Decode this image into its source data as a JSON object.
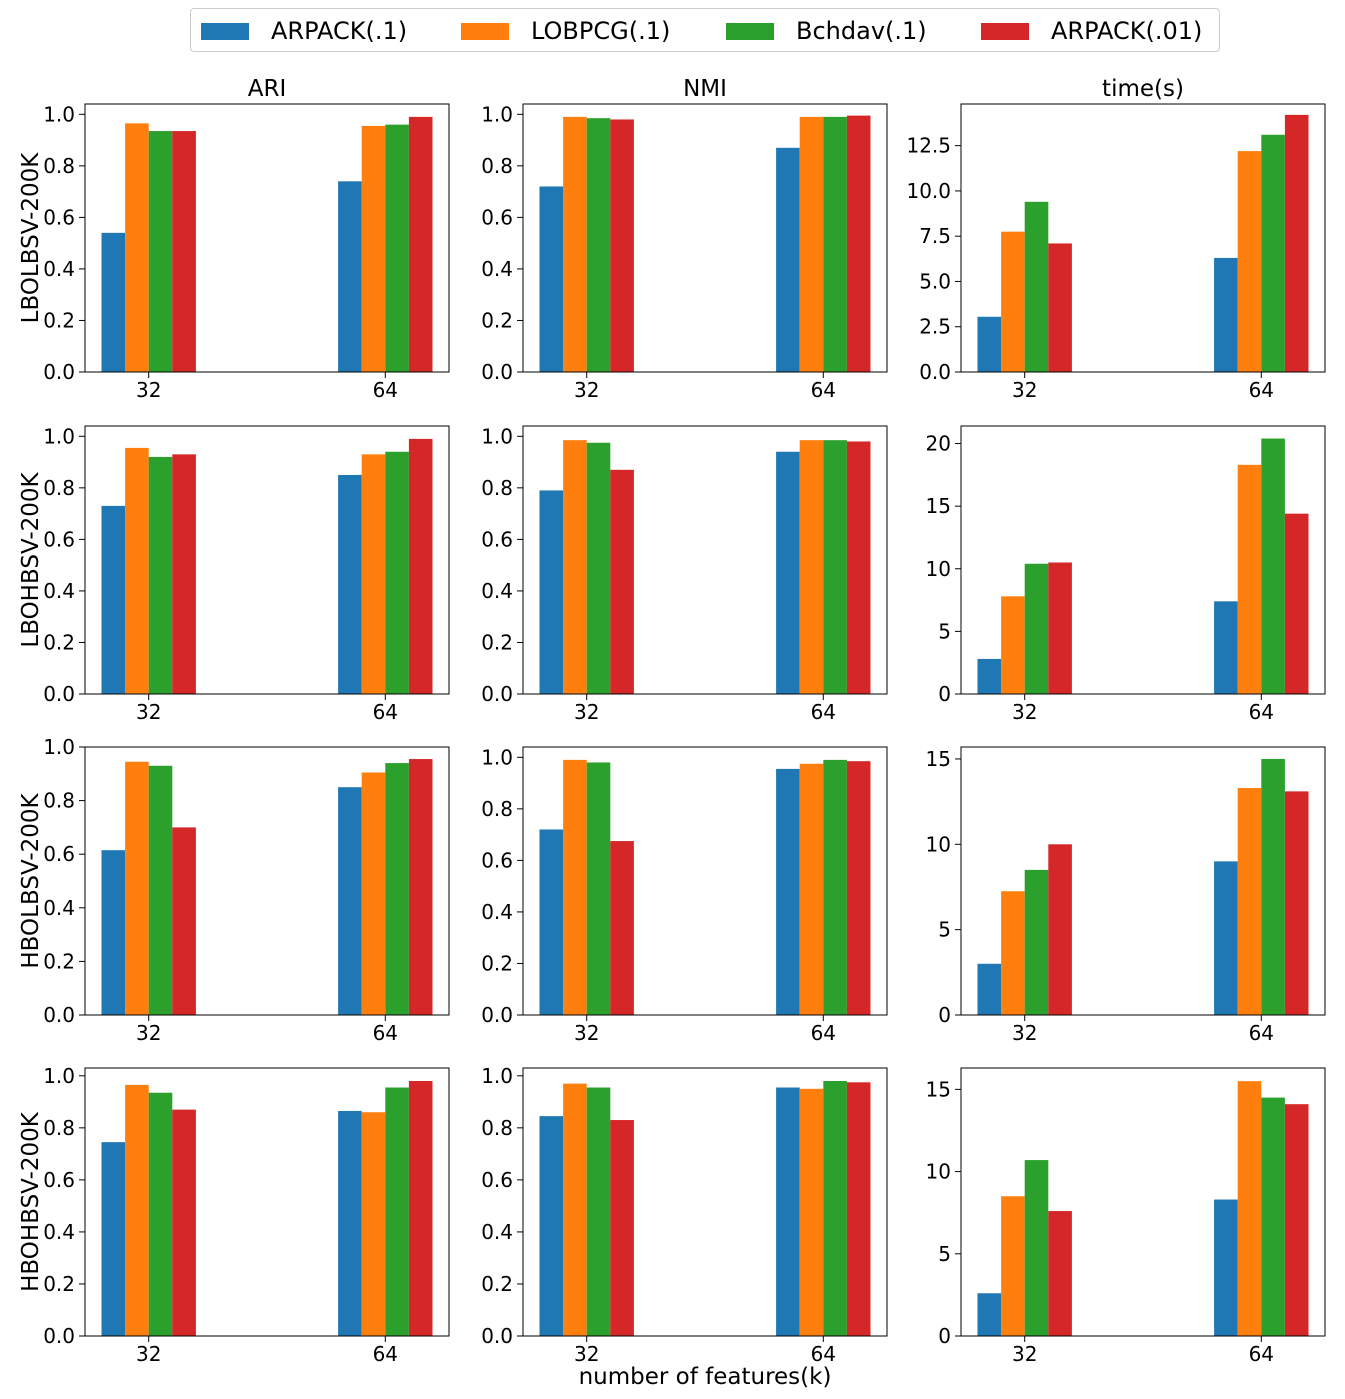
{
  "legend": {
    "items": [
      {
        "label": "ARPACK(.1)",
        "color": "#1f77b4"
      },
      {
        "label": "LOBPCG(.1)",
        "color": "#ff7f0e"
      },
      {
        "label": "Bchdav(.1)",
        "color": "#2ca02c"
      },
      {
        "label": "ARPACK(.01)",
        "color": "#d62728"
      }
    ]
  },
  "figure": {
    "column_titles": [
      "ARI",
      "NMI",
      "time(s)"
    ],
    "row_labels": [
      "LBOLBSV-200K",
      "LBOHBSV-200K",
      "HBOLBSV-200K",
      "HBOHBSV-200K"
    ],
    "xlabel": "number of features(k)"
  },
  "chart_data": [
    {
      "type": "bar",
      "row": "LBOLBSV-200K",
      "title": "ARI",
      "categories": [
        "32",
        "64"
      ],
      "ylim": [
        0,
        1.04
      ],
      "yticks": [
        "0.0",
        "0.2",
        "0.4",
        "0.6",
        "0.8",
        "1.0"
      ],
      "ytick_values": [
        0,
        0.2,
        0.4,
        0.6,
        0.8,
        1.0
      ],
      "series": [
        {
          "name": "ARPACK(.1)",
          "values": [
            0.54,
            0.74
          ]
        },
        {
          "name": "LOBPCG(.1)",
          "values": [
            0.965,
            0.955
          ]
        },
        {
          "name": "Bchdav(.1)",
          "values": [
            0.935,
            0.96
          ]
        },
        {
          "name": "ARPACK(.01)",
          "values": [
            0.935,
            0.99
          ]
        }
      ]
    },
    {
      "type": "bar",
      "row": "LBOLBSV-200K",
      "title": "NMI",
      "categories": [
        "32",
        "64"
      ],
      "ylim": [
        0,
        1.04
      ],
      "yticks": [
        "0.0",
        "0.2",
        "0.4",
        "0.6",
        "0.8",
        "1.0"
      ],
      "ytick_values": [
        0,
        0.2,
        0.4,
        0.6,
        0.8,
        1.0
      ],
      "series": [
        {
          "name": "ARPACK(.1)",
          "values": [
            0.72,
            0.87
          ]
        },
        {
          "name": "LOBPCG(.1)",
          "values": [
            0.99,
            0.99
          ]
        },
        {
          "name": "Bchdav(.1)",
          "values": [
            0.985,
            0.99
          ]
        },
        {
          "name": "ARPACK(.01)",
          "values": [
            0.98,
            0.995
          ]
        }
      ]
    },
    {
      "type": "bar",
      "row": "LBOLBSV-200K",
      "title": "time(s)",
      "categories": [
        "32",
        "64"
      ],
      "ylim": [
        0,
        14.8
      ],
      "yticks": [
        "0.0",
        "2.5",
        "5.0",
        "7.5",
        "10.0",
        "12.5"
      ],
      "ytick_values": [
        0,
        2.5,
        5,
        7.5,
        10,
        12.5
      ],
      "series": [
        {
          "name": "ARPACK(.1)",
          "values": [
            3.05,
            6.3
          ]
        },
        {
          "name": "LOBPCG(.1)",
          "values": [
            7.75,
            12.2
          ]
        },
        {
          "name": "Bchdav(.1)",
          "values": [
            9.4,
            13.1
          ]
        },
        {
          "name": "ARPACK(.01)",
          "values": [
            7.1,
            14.2
          ]
        }
      ]
    },
    {
      "type": "bar",
      "row": "LBOHBSV-200K",
      "title": "ARI",
      "categories": [
        "32",
        "64"
      ],
      "ylim": [
        0,
        1.04
      ],
      "yticks": [
        "0.0",
        "0.2",
        "0.4",
        "0.6",
        "0.8",
        "1.0"
      ],
      "ytick_values": [
        0,
        0.2,
        0.4,
        0.6,
        0.8,
        1.0
      ],
      "series": [
        {
          "name": "ARPACK(.1)",
          "values": [
            0.73,
            0.85
          ]
        },
        {
          "name": "LOBPCG(.1)",
          "values": [
            0.955,
            0.93
          ]
        },
        {
          "name": "Bchdav(.1)",
          "values": [
            0.92,
            0.94
          ]
        },
        {
          "name": "ARPACK(.01)",
          "values": [
            0.93,
            0.99
          ]
        }
      ]
    },
    {
      "type": "bar",
      "row": "LBOHBSV-200K",
      "title": "NMI",
      "categories": [
        "32",
        "64"
      ],
      "ylim": [
        0,
        1.04
      ],
      "yticks": [
        "0.0",
        "0.2",
        "0.4",
        "0.6",
        "0.8",
        "1.0"
      ],
      "ytick_values": [
        0,
        0.2,
        0.4,
        0.6,
        0.8,
        1.0
      ],
      "series": [
        {
          "name": "ARPACK(.1)",
          "values": [
            0.79,
            0.94
          ]
        },
        {
          "name": "LOBPCG(.1)",
          "values": [
            0.985,
            0.985
          ]
        },
        {
          "name": "Bchdav(.1)",
          "values": [
            0.975,
            0.985
          ]
        },
        {
          "name": "ARPACK(.01)",
          "values": [
            0.87,
            0.98
          ]
        }
      ]
    },
    {
      "type": "bar",
      "row": "LBOHBSV-200K",
      "title": "time(s)",
      "categories": [
        "32",
        "64"
      ],
      "ylim": [
        0,
        21.4
      ],
      "yticks": [
        "0",
        "5",
        "10",
        "15",
        "20"
      ],
      "ytick_values": [
        0,
        5,
        10,
        15,
        20
      ],
      "series": [
        {
          "name": "ARPACK(.1)",
          "values": [
            2.8,
            7.4
          ]
        },
        {
          "name": "LOBPCG(.1)",
          "values": [
            7.8,
            18.3
          ]
        },
        {
          "name": "Bchdav(.1)",
          "values": [
            10.4,
            20.4
          ]
        },
        {
          "name": "ARPACK(.01)",
          "values": [
            10.5,
            14.4
          ]
        }
      ]
    },
    {
      "type": "bar",
      "row": "HBOLBSV-200K",
      "title": "ARI",
      "categories": [
        "32",
        "64"
      ],
      "ylim": [
        0,
        1.0
      ],
      "yticks": [
        "0.0",
        "0.2",
        "0.4",
        "0.6",
        "0.8",
        "1.0"
      ],
      "ytick_values": [
        0,
        0.2,
        0.4,
        0.6,
        0.8,
        1.0
      ],
      "series": [
        {
          "name": "ARPACK(.1)",
          "values": [
            0.615,
            0.85
          ]
        },
        {
          "name": "LOBPCG(.1)",
          "values": [
            0.945,
            0.905
          ]
        },
        {
          "name": "Bchdav(.1)",
          "values": [
            0.93,
            0.94
          ]
        },
        {
          "name": "ARPACK(.01)",
          "values": [
            0.7,
            0.955
          ]
        }
      ]
    },
    {
      "type": "bar",
      "row": "HBOLBSV-200K",
      "title": "NMI",
      "categories": [
        "32",
        "64"
      ],
      "ylim": [
        0,
        1.04
      ],
      "yticks": [
        "0.0",
        "0.2",
        "0.4",
        "0.6",
        "0.8",
        "1.0"
      ],
      "ytick_values": [
        0,
        0.2,
        0.4,
        0.6,
        0.8,
        1.0
      ],
      "series": [
        {
          "name": "ARPACK(.1)",
          "values": [
            0.72,
            0.955
          ]
        },
        {
          "name": "LOBPCG(.1)",
          "values": [
            0.99,
            0.975
          ]
        },
        {
          "name": "Bchdav(.1)",
          "values": [
            0.98,
            0.99
          ]
        },
        {
          "name": "ARPACK(.01)",
          "values": [
            0.675,
            0.985
          ]
        }
      ]
    },
    {
      "type": "bar",
      "row": "HBOLBSV-200K",
      "title": "time(s)",
      "categories": [
        "32",
        "64"
      ],
      "ylim": [
        0,
        15.7
      ],
      "yticks": [
        "0",
        "5",
        "10",
        "15"
      ],
      "ytick_values": [
        0,
        5,
        10,
        15
      ],
      "series": [
        {
          "name": "ARPACK(.1)",
          "values": [
            3.0,
            9.0
          ]
        },
        {
          "name": "LOBPCG(.1)",
          "values": [
            7.25,
            13.3
          ]
        },
        {
          "name": "Bchdav(.1)",
          "values": [
            8.5,
            15.0
          ]
        },
        {
          "name": "ARPACK(.01)",
          "values": [
            10.0,
            13.1
          ]
        }
      ]
    },
    {
      "type": "bar",
      "row": "HBOHBSV-200K",
      "title": "ARI",
      "categories": [
        "32",
        "64"
      ],
      "ylim": [
        0,
        1.03
      ],
      "yticks": [
        "0.0",
        "0.2",
        "0.4",
        "0.6",
        "0.8",
        "1.0"
      ],
      "ytick_values": [
        0,
        0.2,
        0.4,
        0.6,
        0.8,
        1.0
      ],
      "series": [
        {
          "name": "ARPACK(.1)",
          "values": [
            0.745,
            0.865
          ]
        },
        {
          "name": "LOBPCG(.1)",
          "values": [
            0.965,
            0.86
          ]
        },
        {
          "name": "Bchdav(.1)",
          "values": [
            0.935,
            0.955
          ]
        },
        {
          "name": "ARPACK(.01)",
          "values": [
            0.87,
            0.98
          ]
        }
      ]
    },
    {
      "type": "bar",
      "row": "HBOHBSV-200K",
      "title": "NMI",
      "categories": [
        "32",
        "64"
      ],
      "ylim": [
        0,
        1.03
      ],
      "yticks": [
        "0.0",
        "0.2",
        "0.4",
        "0.6",
        "0.8",
        "1.0"
      ],
      "ytick_values": [
        0,
        0.2,
        0.4,
        0.6,
        0.8,
        1.0
      ],
      "series": [
        {
          "name": "ARPACK(.1)",
          "values": [
            0.845,
            0.955
          ]
        },
        {
          "name": "LOBPCG(.1)",
          "values": [
            0.97,
            0.95
          ]
        },
        {
          "name": "Bchdav(.1)",
          "values": [
            0.955,
            0.98
          ]
        },
        {
          "name": "ARPACK(.01)",
          "values": [
            0.83,
            0.975
          ]
        }
      ]
    },
    {
      "type": "bar",
      "row": "HBOHBSV-200K",
      "title": "time(s)",
      "categories": [
        "32",
        "64"
      ],
      "ylim": [
        0,
        16.3
      ],
      "yticks": [
        "0",
        "5",
        "10",
        "15"
      ],
      "ytick_values": [
        0,
        5,
        10,
        15
      ],
      "series": [
        {
          "name": "ARPACK(.1)",
          "values": [
            2.6,
            8.3
          ]
        },
        {
          "name": "LOBPCG(.1)",
          "values": [
            8.5,
            15.5
          ]
        },
        {
          "name": "Bchdav(.1)",
          "values": [
            10.7,
            14.5
          ]
        },
        {
          "name": "ARPACK(.01)",
          "values": [
            7.6,
            14.1
          ]
        }
      ]
    }
  ]
}
